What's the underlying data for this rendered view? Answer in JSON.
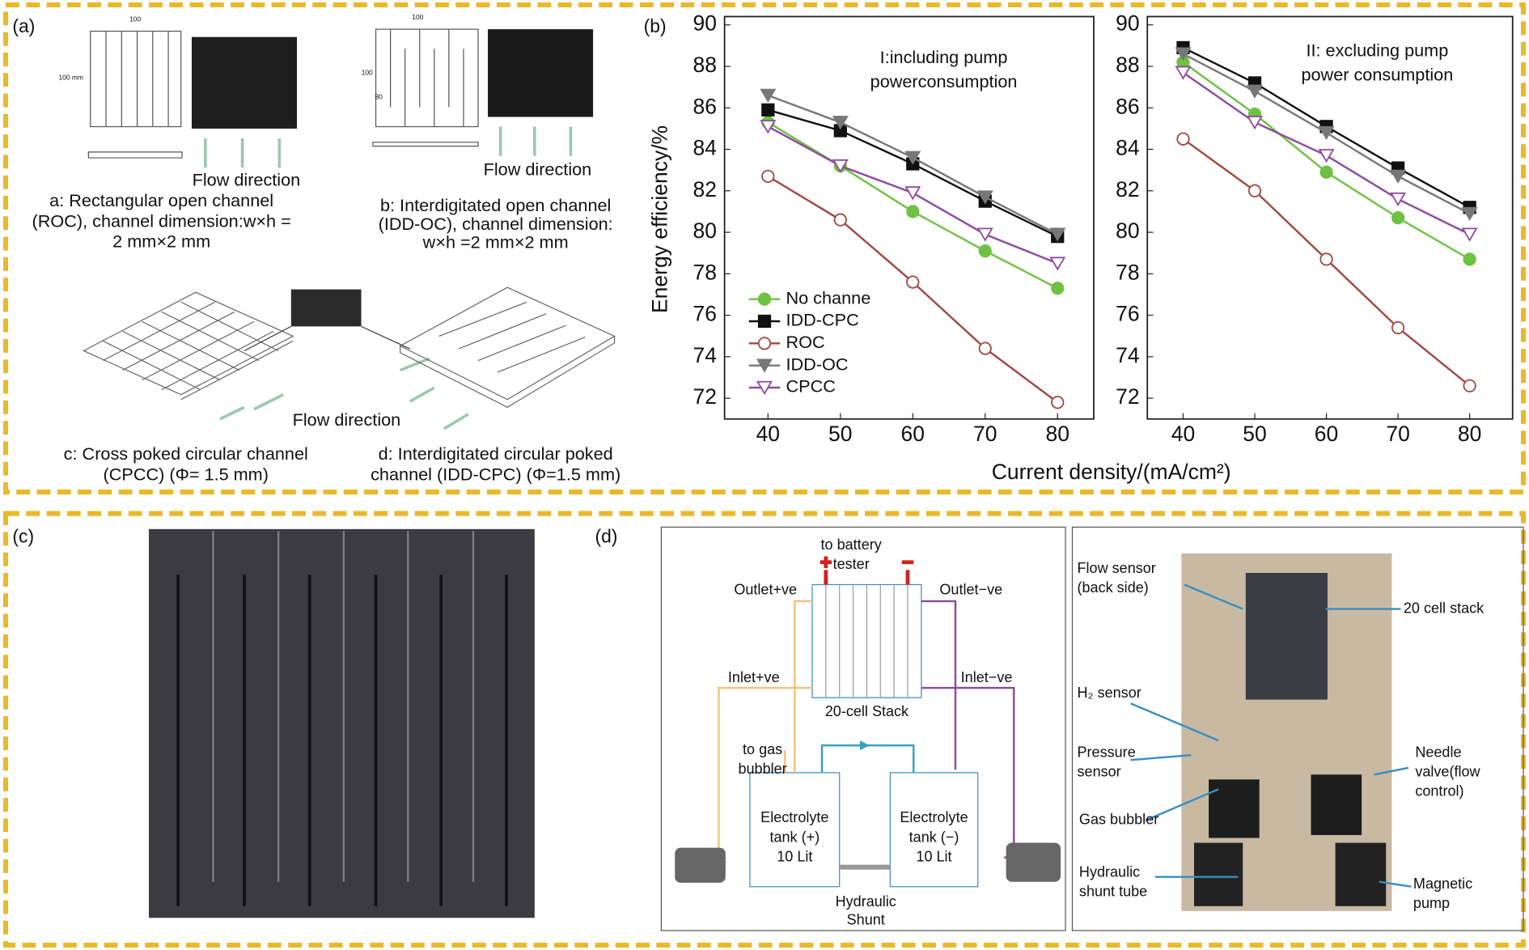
{
  "labels": {
    "a": "(a)",
    "b": "(b)",
    "c": "(c)",
    "d": "(d)"
  },
  "panel_a": {
    "dims": [
      "100",
      "100 mm",
      "100",
      "100",
      "80"
    ],
    "flow": [
      "Flow direction",
      "Flow direction",
      "Flow direction"
    ],
    "captions": [
      [
        "a: Rectangular open channel",
        "(ROC), channel dimension:w×h =",
        "2 mm×2 mm"
      ],
      [
        "b: Interdigitated open channel",
        "(IDD-OC), channel dimension:",
        "w×h =2 mm×2 mm"
      ],
      [
        "c: Cross poked circular channel",
        "(CPCC) (Φ= 1.5 mm)"
      ],
      [
        "d: Interdigitated circular poked",
        "channel (IDD-CPC) (Φ=1.5 mm)"
      ]
    ]
  },
  "panel_b": {
    "ylabel": "Energy efficiency/%",
    "xlabel": "Current density/(mA/cm²)"
  },
  "chart_data": [
    {
      "type": "line",
      "annotation": [
        "I:including pump",
        "powerconsumption"
      ],
      "x": [
        40,
        50,
        60,
        70,
        80
      ],
      "xlim": [
        34,
        85
      ],
      "ylim": [
        71,
        90.4
      ],
      "xticks": [
        40,
        50,
        60,
        70,
        80
      ],
      "yticks": [
        72,
        74,
        76,
        78,
        80,
        82,
        84,
        86,
        88,
        90
      ],
      "legend": "lower left",
      "series": [
        {
          "name": "No channe",
          "color": "#6ec143",
          "marker": "circle",
          "filled": true,
          "values": [
            85.3,
            83.2,
            81.0,
            79.1,
            77.3
          ]
        },
        {
          "name": "IDD-CPC",
          "color": "#111111",
          "marker": "square",
          "filled": true,
          "values": [
            85.9,
            84.9,
            83.3,
            81.5,
            79.8
          ]
        },
        {
          "name": "ROC",
          "color": "#a0483f",
          "marker": "circle",
          "filled": false,
          "values": [
            82.7,
            80.6,
            77.6,
            74.4,
            71.8
          ]
        },
        {
          "name": "IDD-OC",
          "color": "#777777",
          "marker": "triangle-down",
          "filled": true,
          "values": [
            86.6,
            85.3,
            83.6,
            81.7,
            79.9
          ]
        },
        {
          "name": "CPCC",
          "color": "#8e4aa0",
          "marker": "triangle-down",
          "filled": false,
          "values": [
            85.1,
            83.2,
            81.9,
            79.9,
            78.5
          ]
        }
      ]
    },
    {
      "type": "line",
      "annotation": [
        "II: excluding pump",
        "power consumption"
      ],
      "x": [
        40,
        50,
        60,
        70,
        80
      ],
      "xlim": [
        35,
        86
      ],
      "ylim": [
        71,
        90.4
      ],
      "xticks": [
        40,
        50,
        60,
        70,
        80
      ],
      "yticks": [
        72,
        74,
        76,
        78,
        80,
        82,
        84,
        86,
        88,
        90
      ],
      "series": [
        {
          "color": "#6ec143",
          "marker": "circle",
          "filled": true,
          "values": [
            88.2,
            85.7,
            82.9,
            80.7,
            78.7
          ]
        },
        {
          "color": "#111111",
          "marker": "square",
          "filled": true,
          "values": [
            88.9,
            87.2,
            85.1,
            83.1,
            81.2
          ]
        },
        {
          "color": "#a0483f",
          "marker": "circle",
          "filled": false,
          "values": [
            84.5,
            82.0,
            78.7,
            75.4,
            72.6
          ]
        },
        {
          "color": "#777777",
          "marker": "triangle-down",
          "filled": true,
          "values": [
            88.6,
            86.8,
            84.8,
            82.7,
            80.9
          ]
        },
        {
          "color": "#8e4aa0",
          "marker": "triangle-down",
          "filled": false,
          "values": [
            87.7,
            85.3,
            83.7,
            81.6,
            79.9
          ]
        }
      ]
    }
  ],
  "panel_d": {
    "schematic": {
      "top": [
        "to battery",
        "tester"
      ],
      "outlet_pos": "Outlet+ve",
      "outlet_neg": "Outlet−ve",
      "inlet_pos": "Inlet+ve",
      "inlet_neg": "Inlet−ve",
      "stack": "20-cell Stack",
      "gas": [
        "to gas",
        "bubbler"
      ],
      "tank_pos": [
        "Electrolyte",
        "tank (+)",
        "10 Lit"
      ],
      "tank_neg": [
        "Electrolyte",
        "tank (−)",
        "10 Lit"
      ],
      "shunt": [
        "Hydraulic",
        "Shunt"
      ]
    },
    "photo": {
      "labels": [
        [
          "Flow sensor",
          "(back side)"
        ],
        [
          "20 cell stack"
        ],
        [
          "H₂ sensor"
        ],
        [
          "Pressure",
          "sensor"
        ],
        [
          "Needle",
          "valve(flow",
          "control)"
        ],
        [
          "Gas bubbler"
        ],
        [
          "Hydraulic",
          "shunt tube"
        ],
        [
          "Magnetic",
          "pump"
        ]
      ]
    }
  }
}
